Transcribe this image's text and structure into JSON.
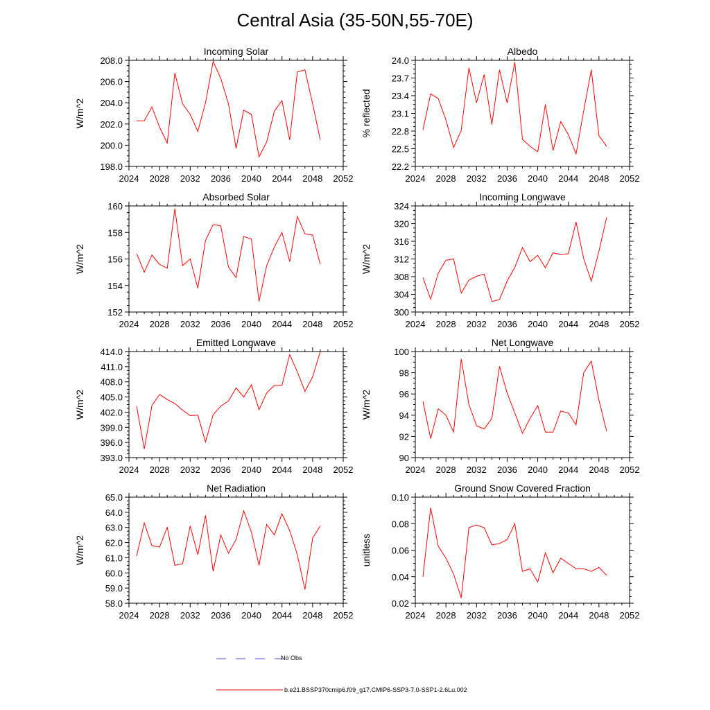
{
  "page_title": "Central Asia (35-50N,55-70E)",
  "colors": {
    "model_line": "#ff0000",
    "obs_line": "#4a4ac8",
    "axis": "#000000"
  },
  "legend": {
    "obs_label": "No Obs",
    "model_label": "b.e21.BSSP370cmip6.f09_g17.CMIP6-SSP3-7.0-SSP1-2.6Lu.002"
  },
  "chart_data": [
    {
      "type": "line",
      "title": "Incoming Solar",
      "ylabel": "W/m^2",
      "xlim": [
        2024,
        2052
      ],
      "xticks": [
        2024,
        2028,
        2032,
        2036,
        2040,
        2044,
        2048,
        2052
      ],
      "ylim": [
        198,
        208
      ],
      "yticks": [
        "198.0",
        "200.0",
        "202.0",
        "204.0",
        "206.0",
        "208.0"
      ],
      "x": [
        2025,
        2026,
        2027,
        2028,
        2029,
        2030,
        2031,
        2032,
        2033,
        2034,
        2035,
        2036,
        2037,
        2038,
        2039,
        2040,
        2041,
        2042,
        2043,
        2044,
        2045,
        2046,
        2047,
        2048,
        2049
      ],
      "series": [
        {
          "values": [
            202.3,
            202.3,
            203.6,
            201.7,
            200.2,
            206.8,
            203.9,
            202.9,
            201.3,
            204.0,
            207.9,
            206.3,
            203.9,
            199.7,
            203.3,
            202.9,
            198.9,
            200.3,
            203.2,
            204.2,
            200.5,
            206.9,
            207.1,
            203.9,
            200.5
          ]
        }
      ]
    },
    {
      "type": "line",
      "title": "Albedo",
      "ylabel": "% reflected",
      "xlim": [
        2024,
        2052
      ],
      "xticks": [
        2024,
        2028,
        2032,
        2036,
        2040,
        2044,
        2048,
        2052
      ],
      "ylim": [
        22.2,
        24.0
      ],
      "yticks": [
        "22.2",
        "22.5",
        "22.8",
        "23.1",
        "23.4",
        "23.7",
        "24.0"
      ],
      "x": [
        2025,
        2026,
        2027,
        2028,
        2029,
        2030,
        2031,
        2032,
        2033,
        2034,
        2035,
        2036,
        2037,
        2038,
        2039,
        2040,
        2041,
        2042,
        2043,
        2044,
        2045,
        2046,
        2047,
        2048,
        2049
      ],
      "series": [
        {
          "values": [
            22.82,
            23.43,
            23.35,
            22.99,
            22.52,
            22.81,
            23.87,
            23.28,
            23.76,
            22.91,
            23.84,
            23.28,
            23.97,
            22.66,
            22.54,
            22.45,
            23.25,
            22.47,
            22.96,
            22.74,
            22.41,
            23.14,
            23.84,
            22.72,
            22.54
          ]
        }
      ]
    },
    {
      "type": "line",
      "title": "Absorbed Solar",
      "ylabel": "W/m^2",
      "xlim": [
        2024,
        2052
      ],
      "xticks": [
        2024,
        2028,
        2032,
        2036,
        2040,
        2044,
        2048,
        2052
      ],
      "ylim": [
        152,
        160
      ],
      "yticks": [
        "152",
        "154",
        "156",
        "158",
        "160"
      ],
      "x": [
        2025,
        2026,
        2027,
        2028,
        2029,
        2030,
        2031,
        2032,
        2033,
        2034,
        2035,
        2036,
        2037,
        2038,
        2039,
        2040,
        2041,
        2042,
        2043,
        2044,
        2045,
        2046,
        2047,
        2048,
        2049
      ],
      "series": [
        {
          "values": [
            156.4,
            155.0,
            156.3,
            155.6,
            155.3,
            159.8,
            155.5,
            156.0,
            153.8,
            157.4,
            158.6,
            158.5,
            155.4,
            154.6,
            157.7,
            157.5,
            152.8,
            155.5,
            156.9,
            158.0,
            155.8,
            159.2,
            157.9,
            157.8,
            155.6
          ]
        }
      ]
    },
    {
      "type": "line",
      "title": "Incoming Longwave",
      "ylabel": "W/m^2",
      "xlim": [
        2024,
        2052
      ],
      "xticks": [
        2024,
        2028,
        2032,
        2036,
        2040,
        2044,
        2048,
        2052
      ],
      "ylim": [
        300,
        324
      ],
      "yticks": [
        "300",
        "304",
        "308",
        "312",
        "316",
        "320",
        "324"
      ],
      "x": [
        2025,
        2026,
        2027,
        2028,
        2029,
        2030,
        2031,
        2032,
        2033,
        2034,
        2035,
        2036,
        2037,
        2038,
        2039,
        2040,
        2041,
        2042,
        2043,
        2044,
        2045,
        2046,
        2047,
        2048,
        2049
      ],
      "series": [
        {
          "values": [
            307.8,
            302.9,
            308.8,
            311.7,
            312.0,
            304.3,
            307.2,
            308.1,
            308.6,
            302.4,
            302.8,
            307.0,
            310.1,
            314.6,
            311.4,
            312.8,
            310.0,
            313.4,
            313.0,
            313.2,
            320.4,
            312.1,
            307.0,
            313.8,
            321.4
          ]
        }
      ]
    },
    {
      "type": "line",
      "title": "Emitted Longwave",
      "ylabel": "W/m^2",
      "xlim": [
        2024,
        2052
      ],
      "xticks": [
        2024,
        2028,
        2032,
        2036,
        2040,
        2044,
        2048,
        2052
      ],
      "ylim": [
        393,
        414
      ],
      "yticks": [
        "393.0",
        "396.0",
        "399.0",
        "402.0",
        "405.0",
        "408.0",
        "411.0",
        "414.0"
      ],
      "x": [
        2025,
        2026,
        2027,
        2028,
        2029,
        2030,
        2031,
        2032,
        2033,
        2034,
        2035,
        2036,
        2037,
        2038,
        2039,
        2040,
        2041,
        2042,
        2043,
        2044,
        2045,
        2046,
        2047,
        2048,
        2049
      ],
      "series": [
        {
          "values": [
            403.2,
            394.7,
            403.3,
            405.5,
            404.5,
            403.7,
            402.4,
            401.3,
            401.4,
            396.1,
            401.5,
            403.2,
            404.2,
            406.8,
            405.0,
            407.4,
            402.5,
            405.8,
            407.3,
            407.3,
            413.4,
            410.0,
            406.1,
            409.0,
            414.0
          ]
        }
      ]
    },
    {
      "type": "line",
      "title": "Net Longwave",
      "ylabel": "W/m^2",
      "xlim": [
        2024,
        2052
      ],
      "xticks": [
        2024,
        2028,
        2032,
        2036,
        2040,
        2044,
        2048,
        2052
      ],
      "ylim": [
        90,
        100
      ],
      "yticks": [
        "90",
        "92",
        "94",
        "96",
        "98",
        "100"
      ],
      "x": [
        2025,
        2026,
        2027,
        2028,
        2029,
        2030,
        2031,
        2032,
        2033,
        2034,
        2035,
        2036,
        2037,
        2038,
        2039,
        2040,
        2041,
        2042,
        2043,
        2044,
        2045,
        2046,
        2047,
        2048,
        2049
      ],
      "series": [
        {
          "values": [
            95.3,
            91.8,
            94.6,
            94.0,
            92.4,
            99.3,
            95.0,
            93.0,
            92.7,
            93.7,
            98.6,
            96.1,
            94.2,
            92.3,
            93.7,
            94.9,
            92.4,
            92.4,
            94.4,
            94.2,
            93.1,
            98.0,
            99.1,
            95.4,
            92.5
          ]
        }
      ]
    },
    {
      "type": "line",
      "title": "Net Radiation",
      "ylabel": "W/m^2",
      "xlim": [
        2024,
        2052
      ],
      "xticks": [
        2024,
        2028,
        2032,
        2036,
        2040,
        2044,
        2048,
        2052
      ],
      "ylim": [
        58,
        65
      ],
      "yticks": [
        "58.0",
        "59.0",
        "60.0",
        "61.0",
        "62.0",
        "63.0",
        "64.0",
        "65.0"
      ],
      "x": [
        2025,
        2026,
        2027,
        2028,
        2029,
        2030,
        2031,
        2032,
        2033,
        2034,
        2035,
        2036,
        2037,
        2038,
        2039,
        2040,
        2041,
        2042,
        2043,
        2044,
        2045,
        2046,
        2047,
        2048,
        2049
      ],
      "series": [
        {
          "values": [
            61.1,
            63.3,
            61.8,
            61.7,
            63.0,
            60.5,
            60.6,
            63.1,
            61.2,
            63.8,
            60.1,
            62.5,
            61.3,
            62.2,
            64.1,
            62.7,
            60.5,
            63.2,
            62.5,
            63.9,
            62.8,
            61.2,
            58.9,
            62.3,
            63.1
          ]
        }
      ]
    },
    {
      "type": "line",
      "title": "Ground Snow Covered Fraction",
      "ylabel": "unitless",
      "xlim": [
        2024,
        2052
      ],
      "xticks": [
        2024,
        2028,
        2032,
        2036,
        2040,
        2044,
        2048,
        2052
      ],
      "ylim": [
        0.02,
        0.1
      ],
      "yticks": [
        "0.02",
        "0.04",
        "0.06",
        "0.08",
        "0.10"
      ],
      "x": [
        2025,
        2026,
        2027,
        2028,
        2029,
        2030,
        2031,
        2032,
        2033,
        2034,
        2035,
        2036,
        2037,
        2038,
        2039,
        2040,
        2041,
        2042,
        2043,
        2044,
        2045,
        2046,
        2047,
        2048,
        2049
      ],
      "series": [
        {
          "values": [
            0.04,
            0.092,
            0.063,
            0.054,
            0.042,
            0.024,
            0.077,
            0.079,
            0.077,
            0.064,
            0.065,
            0.068,
            0.08,
            0.044,
            0.046,
            0.036,
            0.058,
            0.043,
            0.054,
            0.05,
            0.046,
            0.046,
            0.044,
            0.047,
            0.041
          ]
        }
      ]
    }
  ]
}
